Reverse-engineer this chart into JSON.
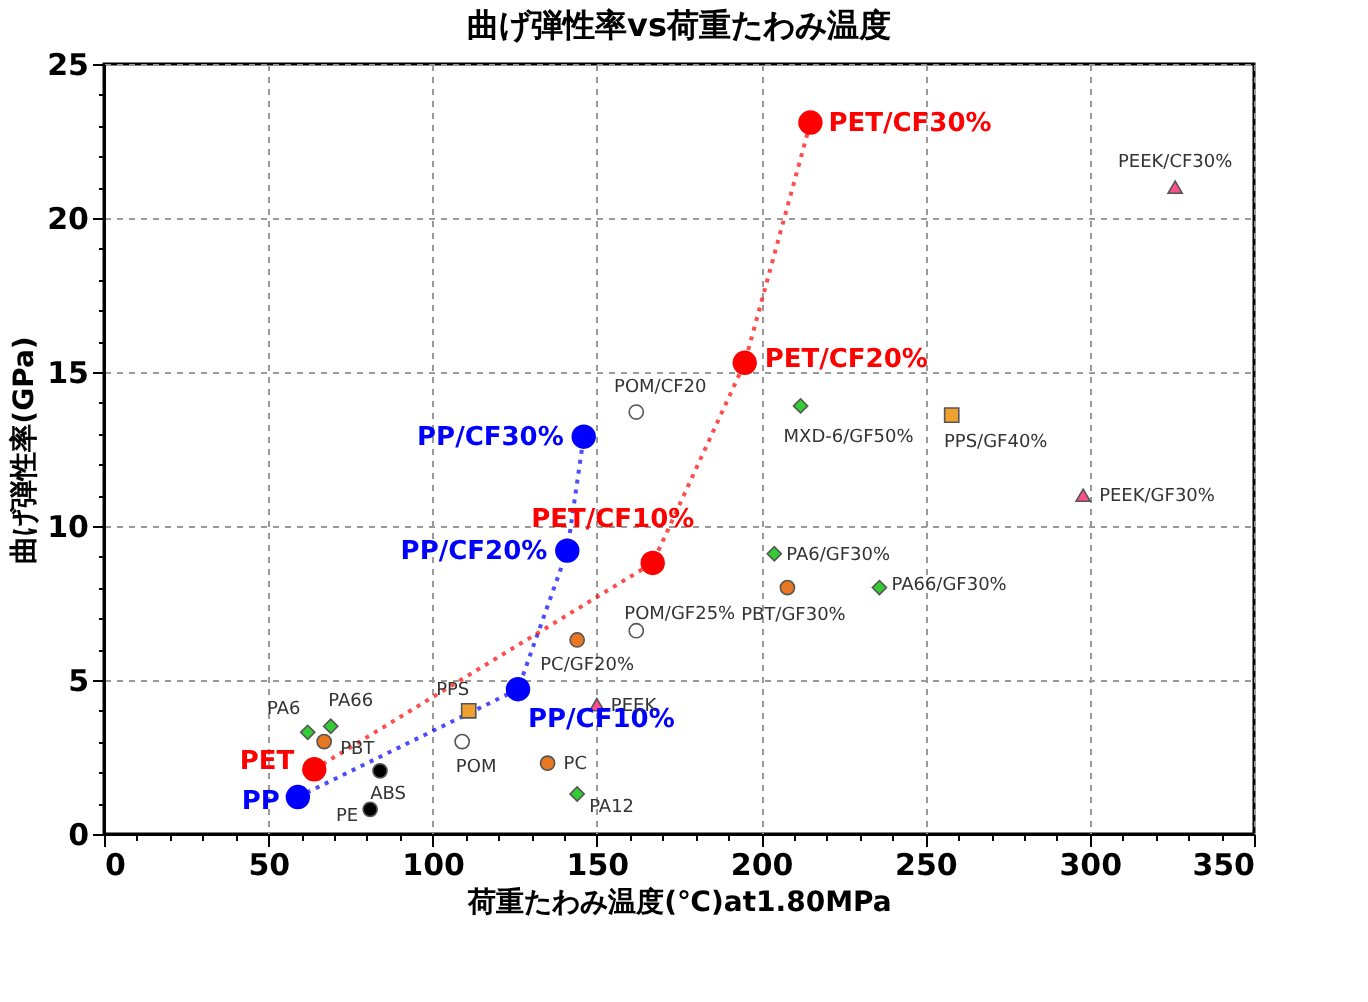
{
  "chart_data": {
    "type": "scatter",
    "title": "曲げ弾性率vs荷重たわみ温度",
    "xlabel": "荷重たわみ温度(℃)at1.80MPa",
    "ylabel": "曲げ弾性率(GPa)",
    "xlim": [
      0,
      350
    ],
    "ylim": [
      0,
      25
    ],
    "xticks": [
      0,
      {
        "value": 10,
        "label": null
      },
      {
        "value": 20,
        "label": null
      },
      {
        "value": 30,
        "label": null
      },
      {
        "value": 40,
        "label": null
      },
      50,
      {
        "value": 60,
        "label": null
      },
      {
        "value": 70,
        "label": null
      },
      {
        "value": 80,
        "label": null
      },
      {
        "value": 90,
        "label": null
      },
      100,
      {
        "value": 110,
        "label": null
      },
      {
        "value": 120,
        "label": null
      },
      {
        "value": 130,
        "label": null
      },
      {
        "value": 140,
        "label": null
      },
      150,
      {
        "value": 160,
        "label": null
      },
      {
        "value": 170,
        "label": null
      },
      {
        "value": 180,
        "label": null
      },
      {
        "value": 190,
        "label": null
      },
      200,
      {
        "value": 210,
        "label": null
      },
      {
        "value": 220,
        "label": null
      },
      {
        "value": 230,
        "label": null
      },
      {
        "value": 240,
        "label": null
      },
      250,
      {
        "value": 260,
        "label": null
      },
      {
        "value": 270,
        "label": null
      },
      {
        "value": 280,
        "label": null
      },
      {
        "value": 290,
        "label": null
      },
      300,
      {
        "value": 310,
        "label": null
      },
      {
        "value": 320,
        "label": null
      },
      {
        "value": 330,
        "label": null
      },
      {
        "value": 340,
        "label": null
      },
      350
    ],
    "yticks": [
      0,
      {
        "value": 1,
        "label": null
      },
      {
        "value": 2,
        "label": null
      },
      {
        "value": 3,
        "label": null
      },
      {
        "value": 4,
        "label": null
      },
      5,
      {
        "value": 6,
        "label": null
      },
      {
        "value": 7,
        "label": null
      },
      {
        "value": 8,
        "label": null
      },
      {
        "value": 9,
        "label": null
      },
      10,
      {
        "value": 11,
        "label": null
      },
      {
        "value": 12,
        "label": null
      },
      {
        "value": 13,
        "label": null
      },
      {
        "value": 14,
        "label": null
      },
      15,
      {
        "value": 16,
        "label": null
      },
      {
        "value": 17,
        "label": null
      },
      {
        "value": 18,
        "label": null
      },
      {
        "value": 19,
        "label": null
      },
      20,
      {
        "value": 21,
        "label": null
      },
      {
        "value": 22,
        "label": null
      },
      {
        "value": 23,
        "label": null
      },
      {
        "value": 24,
        "label": null
      },
      25
    ],
    "grid": true,
    "series": [
      {
        "type": "line",
        "color": "#0000ff",
        "marker": "circle",
        "line_style": "dotted",
        "x": [
          59,
          126,
          141,
          146
        ],
        "values": [
          1.2,
          4.7,
          9.2,
          12.9
        ],
        "value_labels": [
          "PP",
          "PP/CF10%",
          "PP/CF20%",
          "PP/CF30%"
        ]
      },
      {
        "type": "line",
        "color": "#ff0000",
        "marker": "circle",
        "line_style": "dotted",
        "x": [
          64,
          167,
          195,
          215
        ],
        "values": [
          2.1,
          8.8,
          15.3,
          23.1
        ],
        "value_labels": [
          "PET",
          "PET/CF10%",
          "PET/CF20%",
          "PET/CF30%"
        ]
      },
      {
        "color": "#33cc33",
        "marker": "diamond",
        "x": [
          62,
          69,
          144,
          204,
          236,
          212
        ],
        "values": [
          3.3,
          3.5,
          1.3,
          9.1,
          8.0,
          13.9
        ],
        "value_labels": [
          "PA6",
          "PA66",
          "PA12",
          "PA6/GF30%",
          "PA66/GF30%",
          "MXD-6/GF50%"
        ]
      },
      {
        "color": "#e87722",
        "marker": "circle",
        "x": [
          67,
          135,
          144,
          208
        ],
        "values": [
          3.0,
          2.3,
          6.3,
          8.0
        ],
        "value_labels": [
          "PBT",
          "PC",
          "PC/GF20%",
          "PBT/GF30%"
        ]
      },
      {
        "color": "#000000",
        "marker": "circle",
        "x": [
          84,
          81
        ],
        "values": [
          2.05,
          0.8
        ],
        "value_labels": [
          "ABS",
          "PE"
        ]
      },
      {
        "color": "#ffffff",
        "marker": "circle",
        "x": [
          109,
          162,
          162
        ],
        "values": [
          3.0,
          6.6,
          13.7
        ],
        "value_labels": [
          "POM",
          "POM/GF25%",
          "POM/CF20"
        ]
      },
      {
        "color": "#f0a030",
        "marker": "square",
        "x": [
          111,
          258
        ],
        "values": [
          4.0,
          13.6
        ],
        "value_labels": [
          "PPS",
          "PPS/GF40%"
        ]
      },
      {
        "color": "#ff4f8b",
        "marker": "triangle",
        "x": [
          150,
          298,
          326
        ],
        "values": [
          4.2,
          11.0,
          21.0
        ],
        "value_labels": [
          "PEEK",
          "PEEK/GF30%",
          "PEEK/CF30%"
        ]
      }
    ]
  }
}
